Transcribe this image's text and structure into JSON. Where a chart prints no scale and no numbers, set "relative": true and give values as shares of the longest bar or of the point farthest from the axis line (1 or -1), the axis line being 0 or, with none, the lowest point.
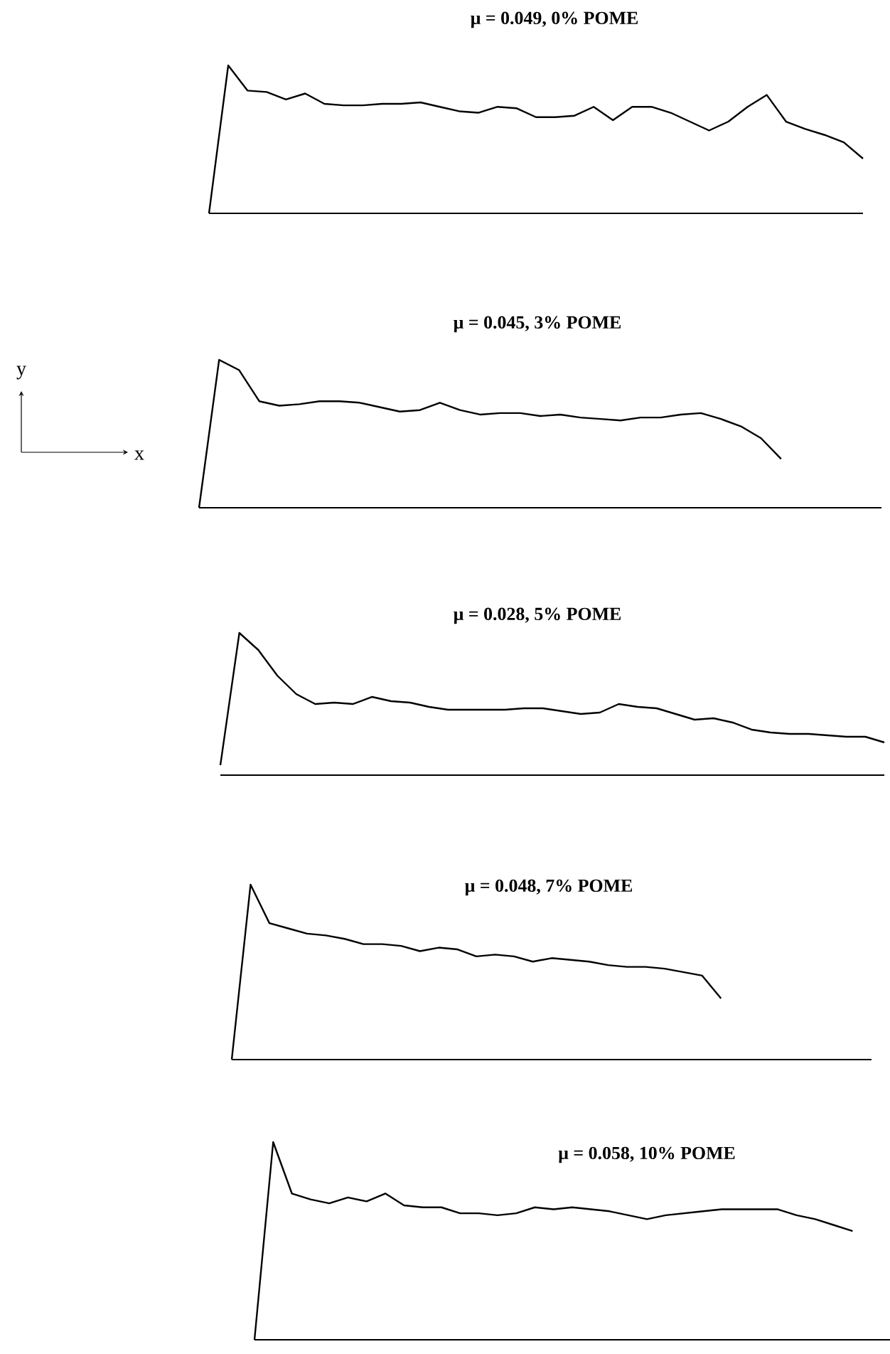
{
  "chart_data": [
    {
      "type": "line",
      "title": "μ = 0.049, 0% POME",
      "relative": true,
      "categories": [
        null,
        null,
        null,
        null,
        null,
        null,
        null,
        null,
        null,
        null,
        null,
        null,
        null,
        null,
        null,
        null,
        null,
        null,
        null,
        null,
        null,
        null,
        null,
        null,
        null,
        null,
        null,
        null,
        null,
        null,
        null,
        null,
        null,
        null,
        null
      ],
      "series": [
        {
          "color": "#000000",
          "values": [
            0,
            1.0,
            0.83,
            0.82,
            0.77,
            0.81,
            0.74,
            0.73,
            0.73,
            0.74,
            0.74,
            0.75,
            0.72,
            0.69,
            0.68,
            0.72,
            0.71,
            0.65,
            0.65,
            0.66,
            0.72,
            0.63,
            0.72,
            0.72,
            0.68,
            0.62,
            0.56,
            0.62,
            0.72,
            0.8,
            0.62,
            0.57,
            0.53,
            0.48,
            0.37
          ]
        }
      ]
    },
    {
      "type": "line",
      "title": "μ = 0.045, 3% POME",
      "relative": true,
      "annotations": [
        "y",
        "x"
      ],
      "categories": [
        null,
        null,
        null,
        null,
        null,
        null,
        null,
        null,
        null,
        null,
        null,
        null,
        null,
        null,
        null,
        null,
        null,
        null,
        null,
        null,
        null,
        null,
        null,
        null,
        null,
        null,
        null,
        null,
        null,
        null,
        null,
        null,
        null,
        null,
        null
      ],
      "series": [
        {
          "color": "#000000",
          "values": [
            0,
            1.0,
            0.93,
            0.72,
            0.69,
            0.7,
            0.72,
            0.72,
            0.71,
            0.68,
            0.65,
            0.66,
            0.71,
            0.66,
            0.63,
            0.64,
            0.64,
            0.62,
            0.63,
            0.61,
            0.6,
            0.59,
            0.61,
            0.61,
            0.63,
            0.64,
            0.6,
            0.55,
            0.47,
            0.33,
            null,
            null,
            null,
            null,
            null
          ]
        }
      ]
    },
    {
      "type": "line",
      "title": "μ = 0.028, 5% POME",
      "relative": true,
      "categories": [
        null,
        null,
        null,
        null,
        null,
        null,
        null,
        null,
        null,
        null,
        null,
        null,
        null,
        null,
        null,
        null,
        null,
        null,
        null,
        null,
        null,
        null,
        null,
        null,
        null,
        null,
        null,
        null,
        null,
        null,
        null,
        null,
        null,
        null,
        null,
        null
      ],
      "series": [
        {
          "color": "#000000",
          "values": [
            0.07,
            1.0,
            0.88,
            0.7,
            0.57,
            0.5,
            0.51,
            0.5,
            0.55,
            0.52,
            0.51,
            0.48,
            0.46,
            0.46,
            0.46,
            0.46,
            0.47,
            0.47,
            0.45,
            0.43,
            0.44,
            0.5,
            0.48,
            0.47,
            0.43,
            0.39,
            0.4,
            0.37,
            0.32,
            0.3,
            0.29,
            0.29,
            0.28,
            0.27,
            0.27,
            0.23
          ]
        }
      ]
    },
    {
      "type": "line",
      "title": "μ = 0.048, 7% POME",
      "relative": true,
      "categories": [
        null,
        null,
        null,
        null,
        null,
        null,
        null,
        null,
        null,
        null,
        null,
        null,
        null,
        null,
        null,
        null,
        null,
        null,
        null,
        null,
        null,
        null,
        null,
        null,
        null,
        null,
        null,
        null,
        null,
        null,
        null,
        null,
        null,
        null,
        null
      ],
      "series": [
        {
          "color": "#000000",
          "values": [
            0,
            1.0,
            0.78,
            0.75,
            0.72,
            0.71,
            0.69,
            0.66,
            0.66,
            0.65,
            0.62,
            0.64,
            0.63,
            0.59,
            0.6,
            0.59,
            0.56,
            0.58,
            0.57,
            0.56,
            0.54,
            0.53,
            0.53,
            0.52,
            0.5,
            0.48,
            0.35,
            null,
            null,
            null,
            null,
            null,
            null,
            null,
            null
          ]
        }
      ]
    },
    {
      "type": "line",
      "title": "μ = 0.058, 10% POME",
      "relative": true,
      "categories": [
        null,
        null,
        null,
        null,
        null,
        null,
        null,
        null,
        null,
        null,
        null,
        null,
        null,
        null,
        null,
        null,
        null,
        null,
        null,
        null,
        null,
        null,
        null,
        null,
        null,
        null,
        null,
        null,
        null,
        null,
        null,
        null,
        null,
        null,
        null
      ],
      "series": [
        {
          "color": "#000000",
          "values": [
            0,
            1.0,
            0.74,
            0.71,
            0.69,
            0.72,
            0.7,
            0.74,
            0.68,
            0.67,
            0.67,
            0.64,
            0.64,
            0.63,
            0.64,
            0.67,
            0.66,
            0.67,
            0.66,
            0.65,
            0.63,
            0.61,
            0.63,
            0.64,
            0.65,
            0.66,
            0.66,
            0.66,
            0.66,
            0.63,
            0.61,
            0.58,
            0.55,
            null,
            null
          ]
        }
      ]
    }
  ]
}
